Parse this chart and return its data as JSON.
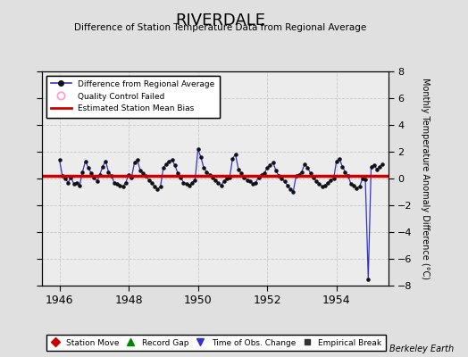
{
  "title": "RIVERDALE",
  "subtitle": "Difference of Station Temperature Data from Regional Average",
  "ylabel": "Monthly Temperature Anomaly Difference (°C)",
  "xlim": [
    1945.5,
    1955.5
  ],
  "ylim": [
    -8,
    8
  ],
  "yticks": [
    -8,
    -6,
    -4,
    -2,
    0,
    2,
    4,
    6,
    8
  ],
  "xticks": [
    1946,
    1948,
    1950,
    1952,
    1954
  ],
  "bg_color": "#e0e0e0",
  "plot_bg_color": "#ececec",
  "line_color": "#3333cc",
  "dot_color": "#111111",
  "bias_color": "#cc0000",
  "bias_value": 0.18,
  "watermark": "Berkeley Earth",
  "data_x": [
    1946.0,
    1946.083,
    1946.167,
    1946.25,
    1946.333,
    1946.417,
    1946.5,
    1946.583,
    1946.667,
    1946.75,
    1946.833,
    1946.917,
    1947.0,
    1947.083,
    1947.167,
    1947.25,
    1947.333,
    1947.417,
    1947.5,
    1947.583,
    1947.667,
    1947.75,
    1947.833,
    1947.917,
    1948.0,
    1948.083,
    1948.167,
    1948.25,
    1948.333,
    1948.417,
    1948.5,
    1948.583,
    1948.667,
    1948.75,
    1948.833,
    1948.917,
    1949.0,
    1949.083,
    1949.167,
    1949.25,
    1949.333,
    1949.417,
    1949.5,
    1949.583,
    1949.667,
    1949.75,
    1949.833,
    1949.917,
    1950.0,
    1950.083,
    1950.167,
    1950.25,
    1950.333,
    1950.417,
    1950.5,
    1950.583,
    1950.667,
    1950.75,
    1950.833,
    1950.917,
    1951.0,
    1951.083,
    1951.167,
    1951.25,
    1951.333,
    1951.417,
    1951.5,
    1951.583,
    1951.667,
    1951.75,
    1951.833,
    1951.917,
    1952.0,
    1952.083,
    1952.167,
    1952.25,
    1952.333,
    1952.417,
    1952.5,
    1952.583,
    1952.667,
    1952.75,
    1952.833,
    1952.917,
    1953.0,
    1953.083,
    1953.167,
    1953.25,
    1953.333,
    1953.417,
    1953.5,
    1953.583,
    1953.667,
    1953.75,
    1953.833,
    1953.917,
    1954.0,
    1954.083,
    1954.167,
    1954.25,
    1954.333,
    1954.417,
    1954.5,
    1954.583,
    1954.667,
    1954.75,
    1954.833,
    1954.917,
    1955.0,
    1955.083,
    1955.167,
    1955.25,
    1955.333
  ],
  "data_y": [
    1.4,
    0.2,
    0.0,
    -0.3,
    0.1,
    -0.4,
    -0.3,
    -0.5,
    0.5,
    1.3,
    0.8,
    0.4,
    0.1,
    -0.2,
    0.3,
    0.9,
    1.3,
    0.5,
    0.2,
    -0.3,
    -0.4,
    -0.5,
    -0.6,
    -0.3,
    0.3,
    0.1,
    1.2,
    1.4,
    0.6,
    0.4,
    0.2,
    -0.1,
    -0.3,
    -0.6,
    -0.8,
    -0.6,
    0.8,
    1.1,
    1.3,
    1.4,
    1.0,
    0.4,
    0.1,
    -0.3,
    -0.4,
    -0.5,
    -0.3,
    -0.1,
    2.2,
    1.6,
    0.8,
    0.5,
    0.3,
    0.1,
    -0.1,
    -0.3,
    -0.5,
    -0.2,
    0.0,
    0.1,
    1.5,
    1.8,
    0.7,
    0.4,
    0.1,
    -0.1,
    -0.2,
    -0.4,
    -0.3,
    0.1,
    0.3,
    0.4,
    0.8,
    1.0,
    1.2,
    0.6,
    0.2,
    0.0,
    -0.2,
    -0.5,
    -0.8,
    -1.0,
    0.2,
    0.3,
    0.5,
    1.1,
    0.8,
    0.4,
    0.1,
    -0.2,
    -0.4,
    -0.6,
    -0.5,
    -0.3,
    -0.1,
    0.0,
    1.3,
    1.5,
    0.9,
    0.5,
    0.2,
    -0.4,
    -0.5,
    -0.7,
    -0.6,
    0.0,
    -0.05,
    -7.5,
    0.9,
    1.0,
    0.7,
    0.9,
    1.1
  ]
}
